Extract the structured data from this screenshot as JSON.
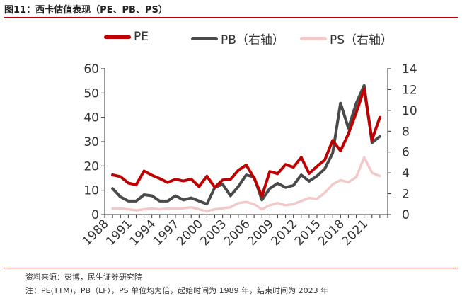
{
  "title": "图11：西卡估值表现（PE、PB、PS）",
  "source": "资料来源：彭博，民生证券研究院",
  "note": "注：PE(TTM)，PB（LF），PS 单位均为倍，起始时间为 1989 年，结束时间为 2023 年",
  "colors": {
    "pe": "#c00000",
    "pb": "#4a4a4a",
    "ps": "#f2c9c9"
  },
  "chart_data": {
    "type": "line",
    "title": "",
    "x": [
      1989,
      1990,
      1991,
      1992,
      1993,
      1994,
      1995,
      1996,
      1997,
      1998,
      1999,
      2000,
      2001,
      2002,
      2003,
      2004,
      2005,
      2006,
      2007,
      2008,
      2009,
      2010,
      2011,
      2012,
      2013,
      2014,
      2015,
      2016,
      2017,
      2018,
      2019,
      2020,
      2021,
      2022,
      2023
    ],
    "xticks": [
      "1988",
      "1991",
      "1994",
      "1997",
      "2000",
      "2003",
      "2006",
      "2009",
      "2012",
      "2015",
      "2018",
      "2021"
    ],
    "yticks_left": [
      "0",
      "10",
      "20",
      "30",
      "40",
      "50",
      "60"
    ],
    "yticks_right": [
      "0",
      "2",
      "4",
      "6",
      "8",
      "10",
      "12",
      "14"
    ],
    "ylim_left": [
      0,
      60
    ],
    "ylim_right": [
      0,
      14
    ],
    "series": [
      {
        "name": "PE",
        "axis": "left",
        "values": [
          16.3,
          15.6,
          13.0,
          12.2,
          17.9,
          16.2,
          14.8,
          13.2,
          14.5,
          13.8,
          14.6,
          11.5,
          15.8,
          11.2,
          14.2,
          14.5,
          18.2,
          20.4,
          15.0,
          7.6,
          17.7,
          16.8,
          20.6,
          19.5,
          23.5,
          16.9,
          19.8,
          22.5,
          30.5,
          26.2,
          33.2,
          42.0,
          51.6,
          30.8,
          40.0
        ]
      },
      {
        "name": "PB（右轴）",
        "axis": "right",
        "values": [
          2.5,
          1.7,
          1.3,
          1.3,
          1.9,
          1.8,
          1.3,
          1.3,
          1.8,
          1.4,
          1.6,
          1.3,
          1.0,
          2.6,
          2.9,
          1.8,
          2.7,
          3.8,
          3.6,
          1.4,
          2.5,
          3.0,
          2.6,
          2.8,
          3.8,
          3.2,
          3.7,
          4.4,
          5.9,
          10.7,
          8.3,
          10.7,
          12.4,
          6.9,
          7.5
        ]
      },
      {
        "name": "PS（右轴）",
        "axis": "right",
        "values": [
          0.6,
          0.6,
          0.5,
          0.4,
          0.5,
          0.6,
          0.5,
          0.6,
          0.6,
          0.6,
          0.7,
          0.5,
          0.3,
          0.5,
          0.6,
          0.7,
          1.1,
          1.2,
          1.0,
          0.5,
          0.9,
          1.1,
          0.9,
          1.0,
          1.3,
          1.6,
          1.5,
          2.1,
          2.9,
          3.3,
          3.1,
          3.6,
          5.5,
          4.0,
          3.7
        ]
      }
    ]
  }
}
